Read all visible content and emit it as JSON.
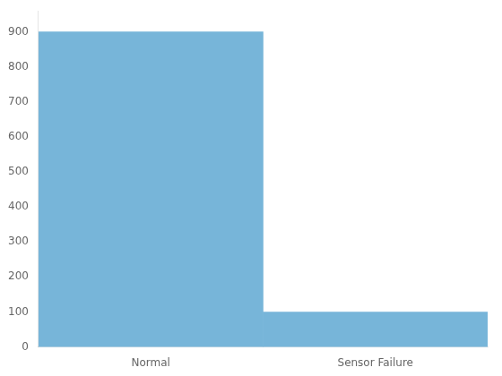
{
  "chart_data": {
    "type": "bar",
    "categories": [
      "Normal",
      "Sensor Failure"
    ],
    "values": [
      900,
      100
    ],
    "color": "#77B5D9",
    "ylim": [
      0,
      960
    ],
    "yticks": [
      0,
      100,
      200,
      300,
      400,
      500,
      600,
      700,
      800,
      900
    ],
    "grid": false
  }
}
